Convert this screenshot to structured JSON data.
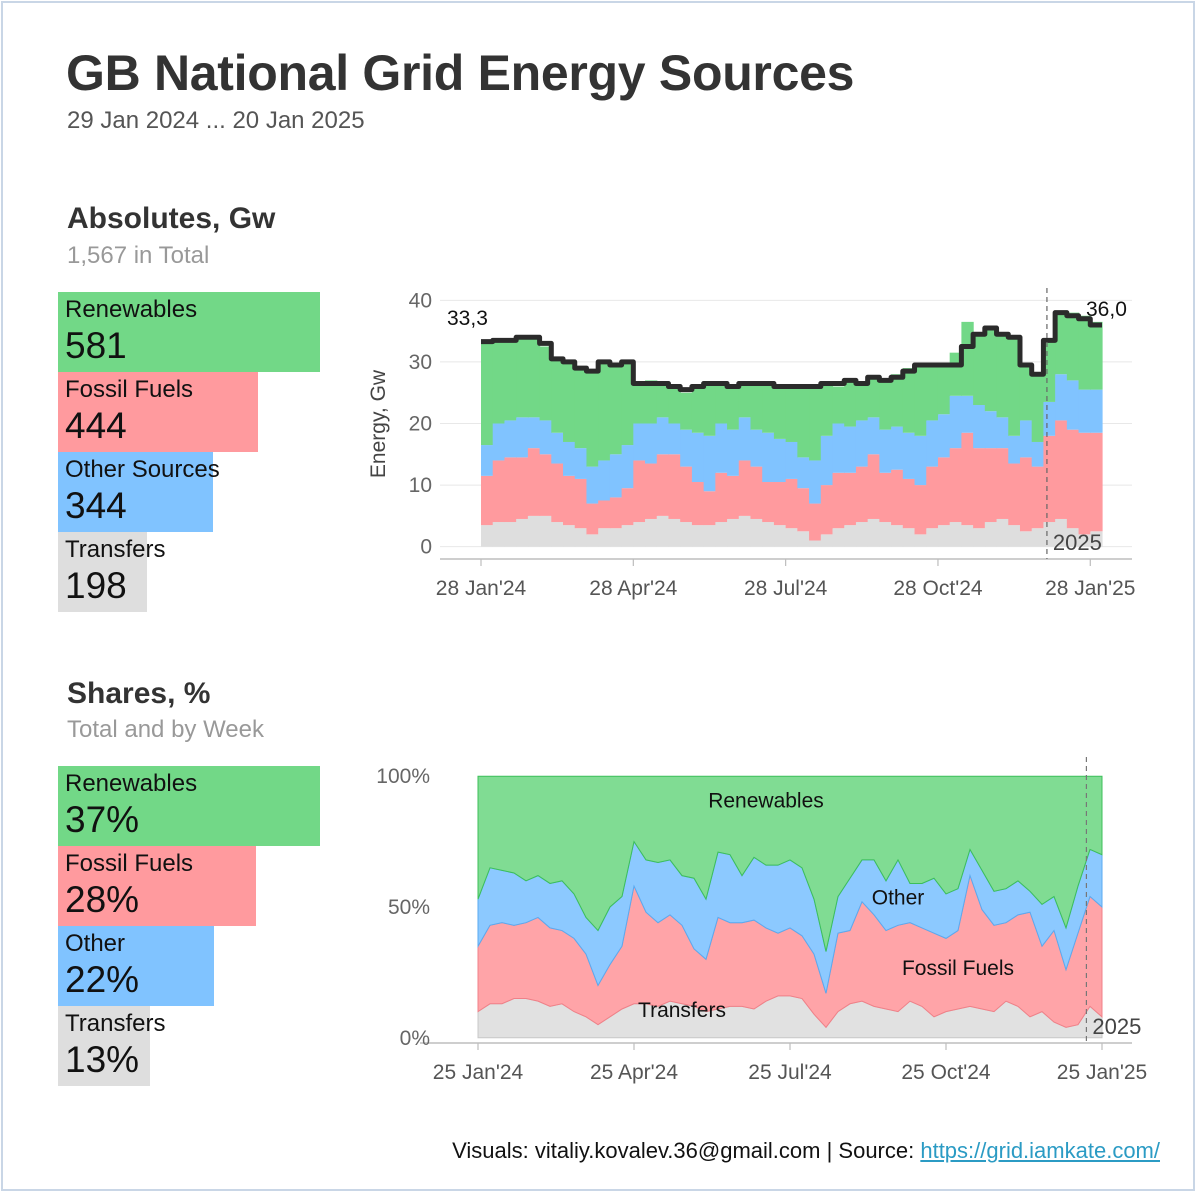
{
  "header": {
    "title": "GB National Grid Energy Sources",
    "subtitle": "29 Jan 2024 ... 20 Jan 2025"
  },
  "colors": {
    "renewables": "#72d887",
    "fossil": "#ff9a9e",
    "other": "#80c3ff",
    "transfers": "#dedede",
    "total_line": "#2b2b2b",
    "link": "#2b9bc4"
  },
  "absolutes": {
    "title": "Absolutes, Gw",
    "subtitle": "1,567 in Total",
    "kpis": [
      {
        "label": "Renewables",
        "value": "581",
        "key": "renewables",
        "amount": 581
      },
      {
        "label": "Fossil Fuels",
        "value": "444",
        "key": "fossil",
        "amount": 444
      },
      {
        "label": "Other Sources",
        "value": "344",
        "key": "other",
        "amount": 344
      },
      {
        "label": "Transfers",
        "value": "198",
        "key": "transfers",
        "amount": 198
      }
    ]
  },
  "shares": {
    "title": "Shares, %",
    "subtitle": "Total and by Week",
    "kpis": [
      {
        "label": "Renewables",
        "value": "37%",
        "key": "renewables",
        "amount": 37
      },
      {
        "label": "Fossil Fuels",
        "value": "28%",
        "key": "fossil",
        "amount": 28
      },
      {
        "label": "Other",
        "value": "22%",
        "key": "other",
        "amount": 22
      },
      {
        "label": "Transfers",
        "value": "13%",
        "key": "transfers",
        "amount": 13
      }
    ]
  },
  "chart_data": [
    {
      "type": "area",
      "stacked": true,
      "step": true,
      "ylabel": "Energy, Gw",
      "ylim": [
        -2,
        42
      ],
      "yticks": [
        0,
        10,
        20,
        30,
        40
      ],
      "xticks": [
        {
          "x": 0,
          "label": "28 Jan'24"
        },
        {
          "x": 13,
          "label": "28 Apr'24"
        },
        {
          "x": 26,
          "label": "28 Jul'24"
        },
        {
          "x": 39,
          "label": "28 Oct'24"
        },
        {
          "x": 52,
          "label": "28 Jan'25"
        }
      ],
      "year_marker": {
        "x": 48.3,
        "label": "2025"
      },
      "start_label": "33,3",
      "end_label": "36,0",
      "series": [
        {
          "name": "Transfers",
          "key": "transfers",
          "values": [
            3.5,
            4,
            4,
            4.5,
            5,
            5,
            4,
            3.5,
            3,
            2,
            3,
            3,
            3.5,
            4,
            4.5,
            5,
            4.5,
            4,
            3.5,
            3.5,
            4,
            4.5,
            5,
            4.5,
            4,
            3.5,
            3,
            2.5,
            1,
            2,
            3,
            3.5,
            4,
            4.5,
            4,
            3.5,
            3,
            2,
            3,
            3.5,
            4,
            3.5,
            3,
            4,
            4.5,
            3.5,
            2.5,
            3,
            4,
            4.5,
            3,
            2,
            2.5
          ]
        },
        {
          "name": "Fossil Fuels",
          "key": "fossil",
          "values": [
            8,
            10,
            10.5,
            10,
            11,
            10,
            9.5,
            8,
            8,
            5,
            4.5,
            5,
            6,
            10,
            9,
            10,
            10.5,
            9,
            7,
            5.5,
            8,
            7,
            9,
            8.5,
            6.5,
            7,
            8,
            7,
            6,
            8,
            9,
            8.5,
            9,
            10.5,
            8,
            9,
            8,
            8,
            10,
            11,
            12,
            15,
            13,
            12,
            11.5,
            10,
            12,
            10,
            14,
            16,
            16,
            16.5,
            16
          ]
        },
        {
          "name": "Other",
          "key": "other",
          "values": [
            5,
            6,
            6,
            6.5,
            5,
            5.5,
            5,
            5.5,
            5,
            6,
            6.5,
            7,
            7,
            6,
            6.5,
            6,
            5,
            6,
            8,
            9,
            8,
            7.5,
            7,
            6,
            8,
            7,
            6,
            5,
            7,
            8,
            8,
            7.5,
            7.5,
            6,
            7,
            7,
            7.5,
            8,
            7.5,
            7,
            8.5,
            6,
            7,
            6,
            5,
            4.5,
            6,
            4,
            5.5,
            7.5,
            8,
            7,
            7
          ]
        },
        {
          "name": "Renewables",
          "key": "renewables",
          "values": [
            16.8,
            13.5,
            13,
            13,
            13,
            12,
            12,
            13,
            13,
            15.5,
            16,
            14.5,
            13.5,
            6.5,
            7,
            5.5,
            6,
            6,
            7.5,
            8.5,
            6.5,
            7,
            5.5,
            7.5,
            8,
            8.5,
            9,
            11.5,
            12,
            8.5,
            6,
            7.5,
            6,
            6.5,
            8,
            8.5,
            10.5,
            11.5,
            9,
            8,
            7,
            12,
            11.5,
            13.5,
            13.5,
            16,
            9,
            11,
            10,
            10,
            11,
            12,
            11
          ]
        },
        {
          "name": "Total",
          "key": "total",
          "values": [
            33.3,
            33.5,
            33.5,
            34,
            34,
            33,
            30.5,
            30,
            29,
            28.5,
            30,
            29.5,
            30,
            26.5,
            26.5,
            26.5,
            26,
            25.5,
            26,
            26.5,
            26.5,
            26,
            26.5,
            26.5,
            26.5,
            26,
            26,
            26,
            26,
            26.5,
            26.5,
            27,
            26.5,
            27.5,
            27,
            27.5,
            28.5,
            29.5,
            29.5,
            29.5,
            29.5,
            32.5,
            34.5,
            35.5,
            34.5,
            34,
            29.5,
            28,
            33.5,
            38,
            37.5,
            37,
            36
          ]
        }
      ]
    },
    {
      "type": "area",
      "stacked": true,
      "percent": true,
      "ylim": [
        -2,
        102
      ],
      "yticks": [
        {
          "y": 0,
          "label": "0%"
        },
        {
          "y": 50,
          "label": "50%"
        },
        {
          "y": 100,
          "label": "100%"
        }
      ],
      "xticks": [
        {
          "x": 0,
          "label": "25 Jan'24"
        },
        {
          "x": 13,
          "label": "25 Apr'24"
        },
        {
          "x": 26,
          "label": "25 Jul'24"
        },
        {
          "x": 39,
          "label": "25 Oct'24"
        },
        {
          "x": 52,
          "label": "25 Jan'25"
        }
      ],
      "year_marker": {
        "x": 50.7,
        "label": "2025"
      },
      "series_labels": [
        {
          "text": "Renewables",
          "x": 24,
          "y": 88
        },
        {
          "text": "Other",
          "x": 35,
          "y": 51
        },
        {
          "text": "Fossil Fuels",
          "x": 40,
          "y": 24
        },
        {
          "text": "Transfers",
          "x": 17,
          "y": 8
        }
      ],
      "series": [
        {
          "name": "Transfers",
          "key": "transfers",
          "values": [
            10,
            13,
            13,
            15,
            15,
            14,
            12,
            13,
            10,
            8,
            5,
            8,
            11,
            13,
            13,
            12,
            14,
            13,
            12,
            10,
            11,
            12,
            12,
            11,
            14,
            16,
            16,
            15,
            9,
            4,
            10,
            13,
            14,
            12,
            11,
            10,
            14,
            12,
            8,
            10,
            11,
            12,
            11,
            10,
            14,
            12,
            8,
            10,
            6,
            4,
            5,
            12,
            8
          ]
        },
        {
          "name": "Fossil Fuels",
          "key": "fossil",
          "values": [
            25,
            30,
            31,
            28,
            29,
            32,
            30,
            28,
            28,
            24,
            15,
            20,
            24,
            45,
            35,
            32,
            33,
            30,
            22,
            20,
            35,
            32,
            32,
            34,
            28,
            24,
            26,
            24,
            23,
            13,
            30,
            28,
            38,
            35,
            30,
            33,
            30,
            30,
            32,
            28,
            30,
            50,
            38,
            33,
            30,
            35,
            40,
            25,
            35,
            22,
            35,
            42,
            42
          ]
        },
        {
          "name": "Other",
          "key": "other",
          "values": [
            18,
            22,
            20,
            20,
            16,
            16,
            17,
            19,
            17,
            14,
            21,
            22,
            19,
            17,
            20,
            23,
            21,
            19,
            27,
            23,
            25,
            26,
            18,
            24,
            24,
            26,
            26,
            26,
            21,
            16,
            14,
            20,
            16,
            21,
            19,
            25,
            15,
            17,
            21,
            17,
            16,
            10,
            15,
            13,
            13,
            13,
            8,
            16,
            13,
            16,
            18,
            18,
            20
          ]
        },
        {
          "name": "Renewables",
          "key": "renewables",
          "values": [
            47,
            35,
            36,
            37,
            40,
            38,
            41,
            40,
            45,
            54,
            59,
            50,
            46,
            25,
            32,
            33,
            32,
            38,
            39,
            47,
            29,
            30,
            38,
            31,
            34,
            34,
            32,
            35,
            47,
            67,
            46,
            39,
            32,
            32,
            40,
            32,
            41,
            41,
            39,
            45,
            43,
            28,
            36,
            44,
            43,
            40,
            44,
            49,
            46,
            58,
            42,
            28,
            30
          ]
        }
      ]
    }
  ],
  "footer": {
    "text": "Visuals: vitaliy.kovalev.36@gmail.com | Source: ",
    "link": "https://grid.iamkate.com/"
  }
}
